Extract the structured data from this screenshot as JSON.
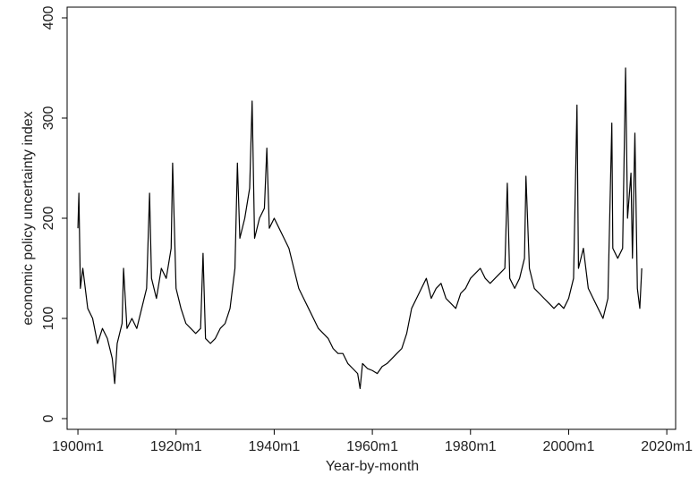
{
  "chart_data": {
    "type": "line",
    "x_label": "Year-by-month",
    "y_label": "economic policy uncertainty index",
    "x": [
      1900,
      1900.2,
      1900.5,
      1901,
      1902,
      1903,
      1904,
      1905,
      1906,
      1907,
      1907.5,
      1908,
      1909,
      1909.3,
      1910,
      1911,
      1912,
      1913,
      1914,
      1914.6,
      1915,
      1916,
      1917,
      1918,
      1919,
      1919.3,
      1920,
      1921,
      1922,
      1923,
      1924,
      1925,
      1925.5,
      1926,
      1927,
      1928,
      1929,
      1930,
      1931,
      1932,
      1932.5,
      1933,
      1934,
      1935,
      1935.5,
      1936,
      1937,
      1938,
      1938.5,
      1939,
      1940,
      1941,
      1942,
      1943,
      1944,
      1945,
      1946,
      1947,
      1948,
      1949,
      1950,
      1951,
      1952,
      1953,
      1954,
      1955,
      1956,
      1957,
      1957.5,
      1958,
      1959,
      1960,
      1961,
      1962,
      1963,
      1964,
      1965,
      1966,
      1967,
      1968,
      1969,
      1970,
      1971,
      1972,
      1973,
      1974,
      1975,
      1976,
      1977,
      1978,
      1979,
      1980,
      1981,
      1982,
      1983,
      1984,
      1985,
      1986,
      1987,
      1987.5,
      1988,
      1989,
      1990,
      1991,
      1991.3,
      1992,
      1993,
      1994,
      1995,
      1996,
      1997,
      1998,
      1999,
      2000,
      2001,
      2001.7,
      2002,
      2003,
      2004,
      2005,
      2006,
      2007,
      2008,
      2008.8,
      2009,
      2010,
      2011,
      2011.6,
      2012,
      2012.7,
      2013,
      2013.5,
      2014,
      2014.5,
      2014.9
    ],
    "series": [
      {
        "name": "economic policy uncertainty index",
        "color": "#000000",
        "values": [
          190,
          225,
          130,
          150,
          110,
          100,
          75,
          90,
          80,
          60,
          35,
          75,
          95,
          150,
          90,
          100,
          90,
          110,
          130,
          225,
          140,
          120,
          150,
          140,
          170,
          255,
          130,
          110,
          95,
          90,
          85,
          90,
          165,
          80,
          75,
          80,
          90,
          95,
          110,
          150,
          255,
          180,
          200,
          230,
          317,
          180,
          200,
          210,
          270,
          190,
          200,
          190,
          180,
          170,
          150,
          130,
          120,
          110,
          100,
          90,
          85,
          80,
          70,
          65,
          65,
          55,
          50,
          45,
          30,
          55,
          50,
          48,
          45,
          52,
          55,
          60,
          65,
          70,
          85,
          110,
          120,
          130,
          140,
          120,
          130,
          135,
          120,
          115,
          110,
          125,
          130,
          140,
          145,
          150,
          140,
          135,
          140,
          145,
          150,
          235,
          140,
          130,
          140,
          160,
          242,
          150,
          130,
          125,
          120,
          115,
          110,
          115,
          110,
          120,
          140,
          313,
          150,
          170,
          130,
          120,
          110,
          100,
          120,
          295,
          170,
          160,
          170,
          350,
          200,
          245,
          160,
          285,
          130,
          110,
          150
        ]
      }
    ],
    "xlim": [
      1897.8,
      2021.8
    ],
    "ylim": [
      -10.7,
      410.7
    ],
    "xticks": [
      {
        "value": 1900,
        "label": "1900m1"
      },
      {
        "value": 1920,
        "label": "1920m1"
      },
      {
        "value": 1940,
        "label": "1940m1"
      },
      {
        "value": 1960,
        "label": "1960m1"
      },
      {
        "value": 1980,
        "label": "1980m1"
      },
      {
        "value": 2000,
        "label": "2000m1"
      },
      {
        "value": 2020,
        "label": "2020m1"
      }
    ],
    "yticks": [
      0,
      100,
      200,
      300,
      400
    ]
  }
}
